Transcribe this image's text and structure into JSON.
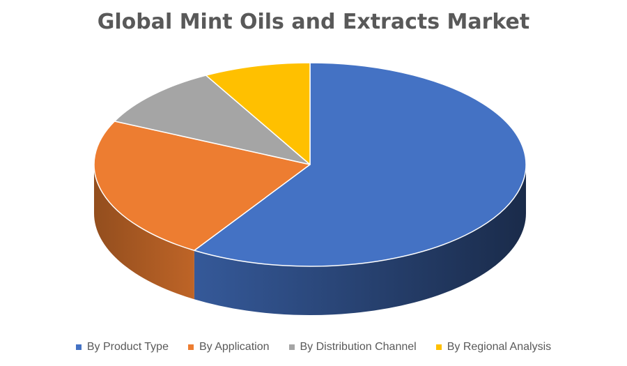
{
  "chart_data": {
    "type": "pie",
    "title": "Global Mint Oils and Extracts Market",
    "categories": [
      "By Product Type",
      "By Application",
      "By Distribution Channel",
      "By Regional Analysis"
    ],
    "values": [
      59,
      23,
      10,
      8
    ],
    "colors": [
      "#4472C4",
      "#ED7D31",
      "#A5A5A5",
      "#FFC000"
    ],
    "style": "3d",
    "legend_position": "bottom"
  }
}
